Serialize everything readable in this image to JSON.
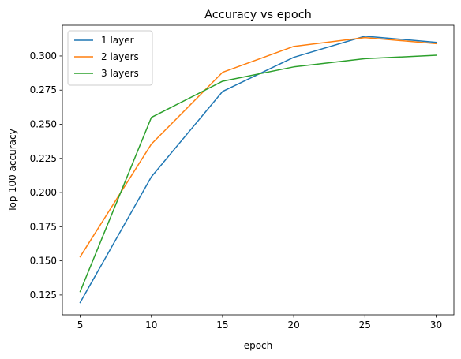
{
  "chart_data": {
    "type": "line",
    "title": "Accuracy vs epoch",
    "xlabel": "epoch",
    "ylabel": "Top-100 accuracy",
    "x": [
      5,
      10,
      15,
      20,
      25,
      30
    ],
    "xticks": [
      "5",
      "10",
      "15",
      "20",
      "25",
      "30"
    ],
    "yticks": [
      "0.125",
      "0.150",
      "0.175",
      "0.200",
      "0.225",
      "0.250",
      "0.275",
      "0.300"
    ],
    "xlim": [
      3.75,
      31.25
    ],
    "ylim": [
      0.1105,
      0.3225
    ],
    "grid": false,
    "legend_position": "upper-left",
    "series": [
      {
        "name": "1 layer",
        "color": "#1f77b4",
        "values": [
          0.1195,
          0.2115,
          0.274,
          0.299,
          0.3145,
          0.31
        ]
      },
      {
        "name": "2 layers",
        "color": "#ff7f0e",
        "values": [
          0.153,
          0.2355,
          0.288,
          0.307,
          0.3135,
          0.309
        ]
      },
      {
        "name": "3 layers",
        "color": "#2ca02c",
        "values": [
          0.1275,
          0.255,
          0.2815,
          0.292,
          0.298,
          0.3005
        ]
      }
    ]
  }
}
